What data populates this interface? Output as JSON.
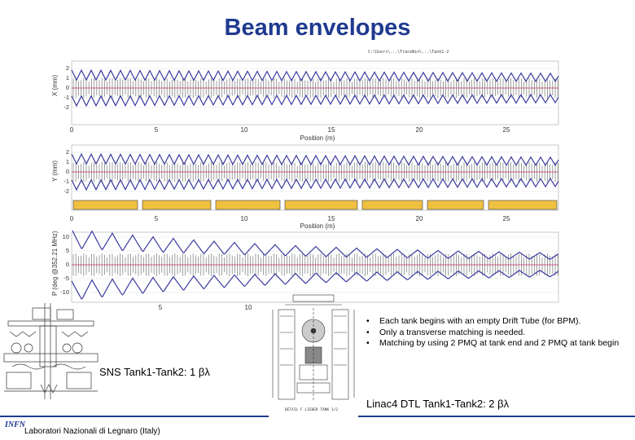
{
  "title": "Beam envelopes",
  "path_text": "C:\\Users\\...\\TraceWin\\...\\Tank1-2",
  "plots": [
    {
      "ylabel": "X (mm)",
      "yticks": [
        "2",
        "1",
        "0",
        "-1",
        "-2"
      ],
      "xticks": [
        "0",
        "5",
        "10",
        "15",
        "20",
        "25"
      ],
      "xlabel": "Position (m)"
    },
    {
      "ylabel": "Y (mm)",
      "yticks": [
        "2",
        "1",
        "0",
        "-1",
        "-2"
      ],
      "xticks": [
        "0",
        "5",
        "10",
        "15",
        "20",
        "25"
      ],
      "xlabel": "Position (m)"
    },
    {
      "ylabel": "P (deg @352.21 MHz)",
      "yticks": [
        "10",
        "5",
        "0",
        "-5",
        "-10"
      ],
      "xticks": [
        "5",
        "10"
      ],
      "xlabel": ""
    }
  ],
  "bullets": [
    "Each tank begins with an empty Drift Tube (for BPM).",
    "Only a transverse matching is needed.",
    "Matching by using 2 PMQ at tank end and 2 PMQ at tank begin"
  ],
  "captions": {
    "sns": "SNS Tank1-Tank2: 1 βλ",
    "linac4": "Linac4 DTL Tank1-Tank2: 2 βλ"
  },
  "footer": "Laboratori Nazionali di Legnaro (Italy)",
  "logo": "INFN",
  "colors": {
    "title": "#1f3a8f",
    "envelope": "#3a3aa0",
    "elements": "#555555",
    "tank_bar": "#f0c040"
  }
}
